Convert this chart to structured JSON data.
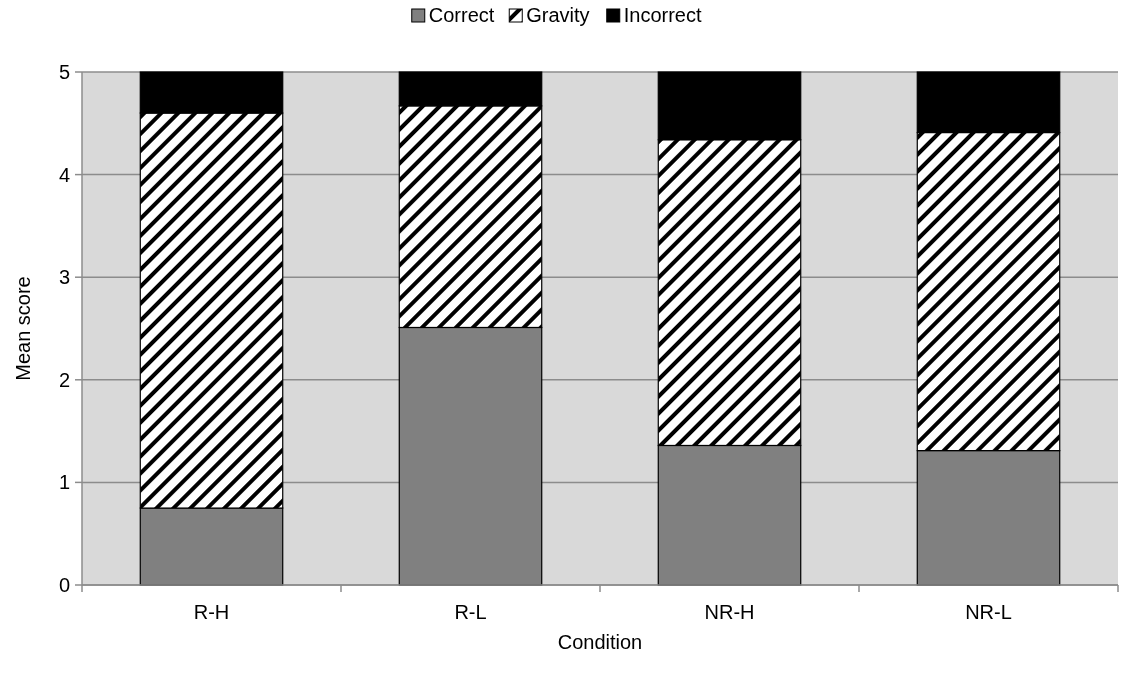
{
  "chart_data": {
    "type": "bar",
    "stacked": true,
    "xlabel": "Condition",
    "ylabel": "Mean score",
    "categories": [
      "R-H",
      "R-L",
      "NR-H",
      "NR-L"
    ],
    "series": [
      {
        "name": "Correct",
        "color": "#808080",
        "values": [
          0.75,
          2.51,
          1.36,
          1.31
        ]
      },
      {
        "name": "Gravity",
        "color": "#ffffff",
        "values": [
          3.85,
          2.16,
          2.98,
          3.1
        ]
      },
      {
        "name": "Incorrect",
        "color": "#000000",
        "values": [
          0.4,
          0.33,
          0.66,
          0.59
        ]
      }
    ],
    "ylim": [
      0,
      5
    ],
    "yticks": [
      0,
      1,
      2,
      3,
      4,
      5
    ],
    "grid": "y",
    "legend": "top"
  }
}
